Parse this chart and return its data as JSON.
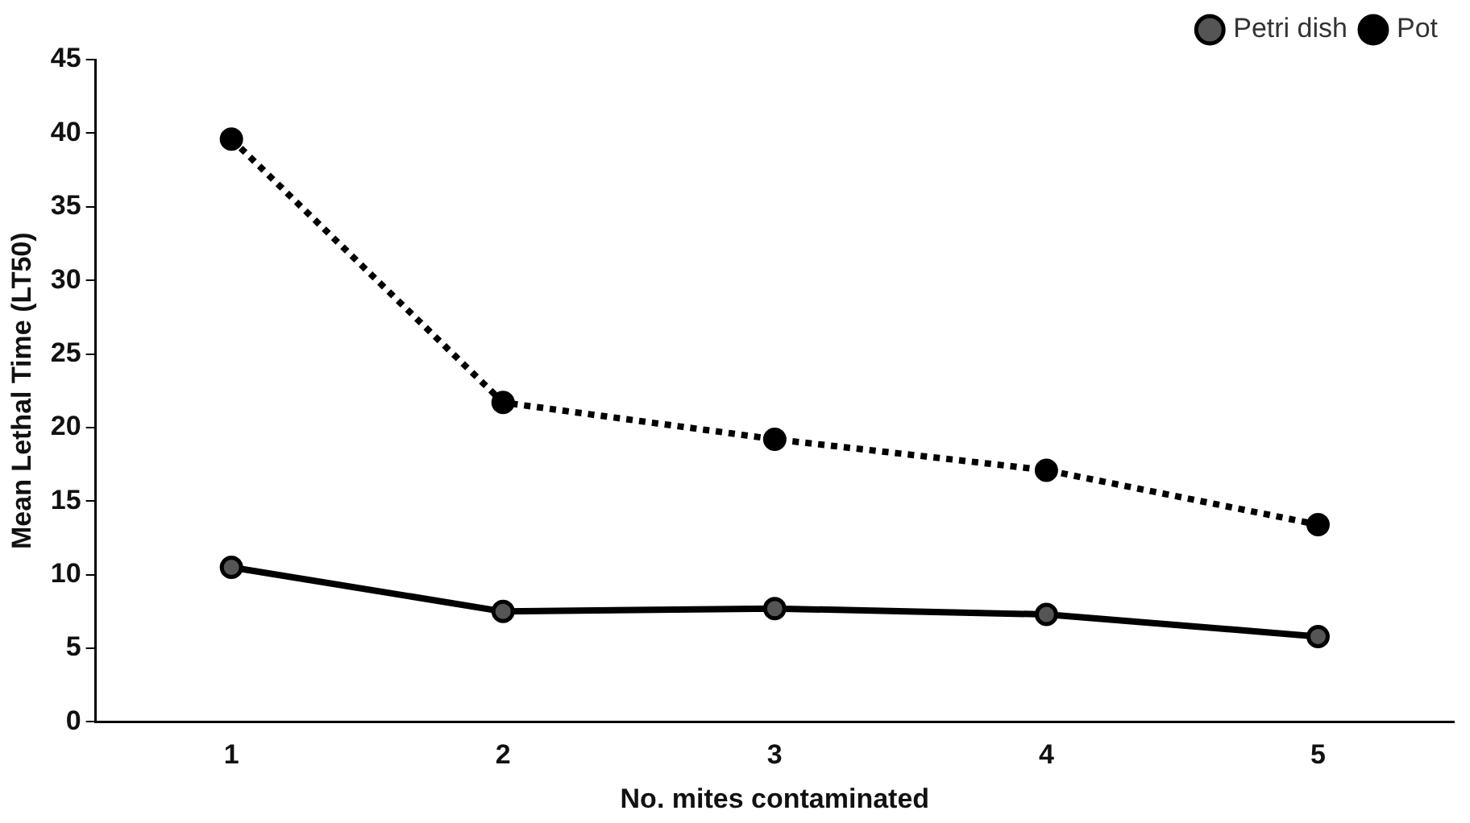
{
  "chart_data": {
    "type": "line",
    "xlabel": "No. mites contaminated",
    "ylabel": "Mean Lethal Time (LT50)",
    "categories": [
      "1",
      "2",
      "3",
      "4",
      "5"
    ],
    "series": [
      {
        "name": "Petri dish",
        "color": "#000000",
        "values": [
          10.5,
          7.5,
          7.7,
          7.3,
          5.8
        ],
        "line_style": "solid",
        "marker": "circle"
      },
      {
        "name": "Pot",
        "color": "#000000",
        "values": [
          39.6,
          21.7,
          19.2,
          17.1,
          13.4
        ],
        "line_style": "dotted",
        "marker": "circle"
      }
    ],
    "ylim": [
      0,
      45
    ],
    "yticks": [
      0,
      5,
      10,
      15,
      20,
      25,
      30,
      35,
      40,
      45
    ],
    "grid": false,
    "legend": "top right"
  }
}
